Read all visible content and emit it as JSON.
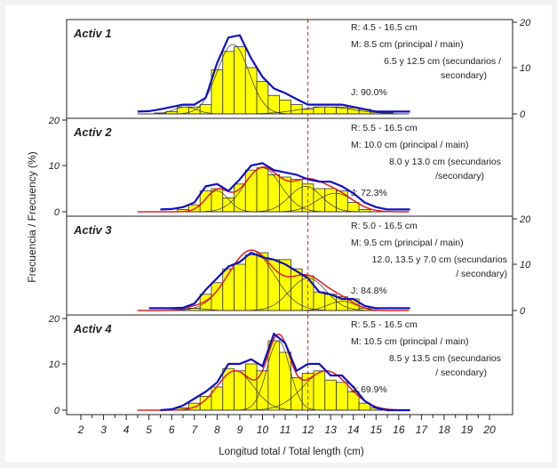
{
  "chart_data": {
    "type": "bar",
    "ylabel": "Frecuencia / Frecuency (%)",
    "xlabel": "Longitud total / Total length (cm)",
    "xlim": [
      1.5,
      20.5
    ],
    "ylim": [
      0,
      20
    ],
    "x_ticks": [
      2,
      3,
      4,
      5,
      6,
      7,
      8,
      9,
      10,
      11,
      12,
      13,
      14,
      15,
      16,
      17,
      18,
      19,
      20
    ],
    "y_ticks": [
      0,
      10,
      20
    ],
    "reference_line_x": 12,
    "x": [
      4.5,
      5,
      5.5,
      6,
      6.5,
      7,
      7.5,
      8,
      8.5,
      9,
      9.5,
      10,
      10.5,
      11,
      11.5,
      12,
      12.5,
      13,
      13.5,
      14,
      14.5,
      15,
      15.5,
      16,
      16.5
    ],
    "colors": {
      "bars": "#ffff00",
      "observed": "#1010c0",
      "fit": "#e02020",
      "components": "#333333",
      "reference": "#e02020"
    },
    "panels": [
      {
        "title": "Activ 1",
        "axis_side": "right",
        "bars": [
          0,
          0,
          0.2,
          0.5,
          1.5,
          1.5,
          2,
          9.5,
          13.5,
          14.5,
          10,
          7,
          4,
          3,
          2,
          1,
          1.5,
          1.5,
          1.5,
          1.3,
          1,
          0.5,
          0.2,
          0,
          0
        ],
        "observed": [
          0.5,
          0.6,
          1,
          1.5,
          2,
          2,
          3.5,
          11,
          16.5,
          17,
          12,
          8,
          5.5,
          4.5,
          3.2,
          2,
          2,
          2,
          2,
          1.5,
          1,
          0.5,
          0.5,
          0.5,
          0.5
        ],
        "components": [
          [
            8.7,
            0.7,
            15
          ],
          [
            6.6,
            0.5,
            1.5
          ],
          [
            12.8,
            1.2,
            1.5
          ]
        ],
        "show_fit": false,
        "notes": [
          "R: 4.5 - 16.5 cm",
          "M: 8.5 cm (principal / main)",
          "6.5 y 12.5 cm (secundarios /",
          "secondary)",
          "J: 90.0%"
        ]
      },
      {
        "title": "Activ 2",
        "axis_side": "left",
        "bars": [
          0,
          0,
          0,
          0,
          0.5,
          1.5,
          4.5,
          5,
          3,
          6,
          9,
          9.5,
          8,
          7.5,
          7,
          6,
          5,
          5,
          4.5,
          2,
          0.5,
          0,
          0,
          0,
          0
        ],
        "observed": [
          null,
          null,
          0.5,
          0.6,
          1,
          2,
          5.5,
          6,
          4.5,
          7,
          10,
          10.5,
          9,
          8.5,
          8,
          7,
          6.5,
          6.5,
          5.5,
          4,
          2,
          1,
          0.5,
          0.5,
          0.5
        ],
        "components": [
          [
            10,
            0.8,
            9.5
          ],
          [
            8,
            0.5,
            4.5
          ],
          [
            11.9,
            0.7,
            5.5
          ],
          [
            13.2,
            0.8,
            4
          ]
        ],
        "show_fit": true,
        "notes": [
          "R: 5.5 - 16.5 cm",
          "M: 10.0 cm (principal / main)",
          "8.0  y 13.0 cm (secundarios",
          "/secondary)",
          "J: 72.3%"
        ]
      },
      {
        "title": "Activ 3",
        "axis_side": "right",
        "bars": [
          0,
          0,
          0,
          0,
          0,
          0.5,
          3.5,
          6,
          9,
          10,
          12,
          12.5,
          11,
          11,
          9,
          7.5,
          4,
          3.5,
          3,
          2.5,
          0.5,
          0,
          0,
          0,
          0
        ],
        "observed": [
          null,
          0.5,
          0.5,
          0.5,
          0.6,
          1.5,
          4.5,
          7,
          9.5,
          10.5,
          12.5,
          11.5,
          11,
          10,
          8.5,
          7,
          4,
          3.5,
          2.5,
          2.5,
          1,
          0.5,
          0.5,
          0.5,
          0.5
        ],
        "components": [
          [
            9.5,
            1,
            13
          ],
          [
            12,
            0.8,
            7
          ],
          [
            13.5,
            0.6,
            2
          ],
          [
            7,
            0.5,
            0.5
          ]
        ],
        "show_fit": true,
        "notes": [
          "R: 5.0 - 16.5 cm",
          "M: 9.5 cm (principal / main)",
          "12.0, 13.5 y 7.0 cm (secundarios",
          "/ secondary)",
          "J: 84.8%"
        ]
      },
      {
        "title": "Activ 4",
        "axis_side": "left",
        "bars": [
          0,
          0,
          0,
          0,
          0.5,
          1.5,
          3,
          5,
          9,
          8.5,
          10,
          8.5,
          15,
          12.5,
          7,
          8,
          8.5,
          6.5,
          6,
          4,
          1.5,
          0.5,
          0,
          0,
          0
        ],
        "observed": [
          null,
          null,
          0,
          0.2,
          1,
          2.5,
          4,
          6,
          10,
          10,
          11,
          9.5,
          16.5,
          14.5,
          8.5,
          10,
          10,
          7.5,
          7.5,
          5,
          2,
          0.5,
          0,
          0,
          0
        ],
        "components": [
          [
            10.7,
            0.5,
            15
          ],
          [
            8.8,
            0.8,
            8.5
          ],
          [
            12.8,
            1,
            8.5
          ]
        ],
        "show_fit": true,
        "notes": [
          "R: 5.5 - 16.5 cm",
          "M: 10.5 cm (principal / main)",
          "8.5 y 13.5 cm (secundarios",
          "/ secondary)",
          "J: 69.9%"
        ]
      }
    ]
  }
}
